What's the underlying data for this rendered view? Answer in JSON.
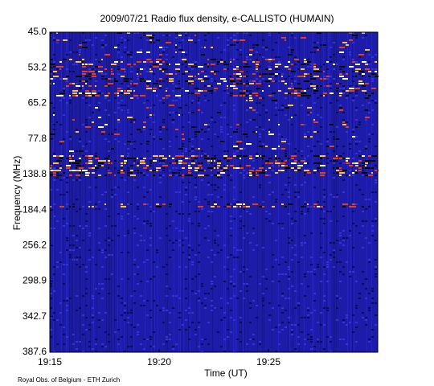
{
  "chart_data": {
    "type": "spectrogram",
    "title": "2009/07/21  Radio flux density, e-CALLISTO (HUMAIN)",
    "xlabel": "Time (UT)",
    "ylabel": "Frequency (MHz)",
    "footer": "Royal Obs. of Belgium - ETH Zurich",
    "xlim": [
      "19:15",
      "19:30"
    ],
    "xticks": [
      "19:15",
      "19:20",
      "19:25"
    ],
    "ylim": [
      45,
      387.6
    ],
    "yticks": [
      {
        "value": 45,
        "label": "45.0"
      },
      53.2,
      65.2,
      77.8,
      138.8,
      184.4,
      256.2,
      298.9,
      342.7,
      387.6
    ]
  }
}
